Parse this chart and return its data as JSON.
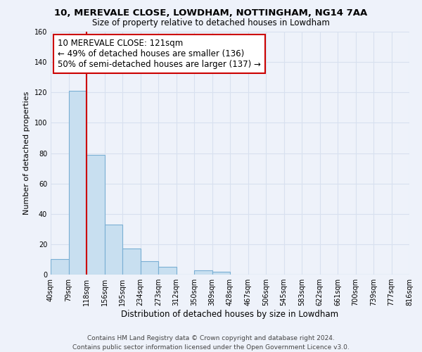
{
  "title": "10, MEREVALE CLOSE, LOWDHAM, NOTTINGHAM, NG14 7AA",
  "subtitle": "Size of property relative to detached houses in Lowdham",
  "xlabel": "Distribution of detached houses by size in Lowdham",
  "ylabel": "Number of detached properties",
  "bar_values": [
    10,
    121,
    79,
    33,
    17,
    9,
    5,
    0,
    3,
    2,
    0,
    0,
    0,
    0,
    0,
    0,
    0,
    0,
    0,
    0
  ],
  "bin_labels": [
    "40sqm",
    "79sqm",
    "118sqm",
    "156sqm",
    "195sqm",
    "234sqm",
    "273sqm",
    "312sqm",
    "350sqm",
    "389sqm",
    "428sqm",
    "467sqm",
    "506sqm",
    "545sqm",
    "583sqm",
    "622sqm",
    "661sqm",
    "700sqm",
    "739sqm",
    "777sqm",
    "816sqm"
  ],
  "bar_color": "#c8dff0",
  "bar_edge_color": "#7aafd4",
  "vline_x": 2,
  "vline_color": "#cc0000",
  "annotation_text": "10 MEREVALE CLOSE: 121sqm\n← 49% of detached houses are smaller (136)\n50% of semi-detached houses are larger (137) →",
  "annotation_box_color": "#ffffff",
  "annotation_box_edge_color": "#cc0000",
  "ylim": [
    0,
    160
  ],
  "yticks": [
    0,
    20,
    40,
    60,
    80,
    100,
    120,
    140,
    160
  ],
  "footer_text": "Contains HM Land Registry data © Crown copyright and database right 2024.\nContains public sector information licensed under the Open Government Licence v3.0.",
  "background_color": "#eef2fa",
  "grid_color": "#d8e0ef",
  "title_fontsize": 9.5,
  "subtitle_fontsize": 8.5,
  "xlabel_fontsize": 8.5,
  "ylabel_fontsize": 8,
  "annotation_fontsize": 8.5,
  "footer_fontsize": 6.5,
  "tick_fontsize": 7
}
